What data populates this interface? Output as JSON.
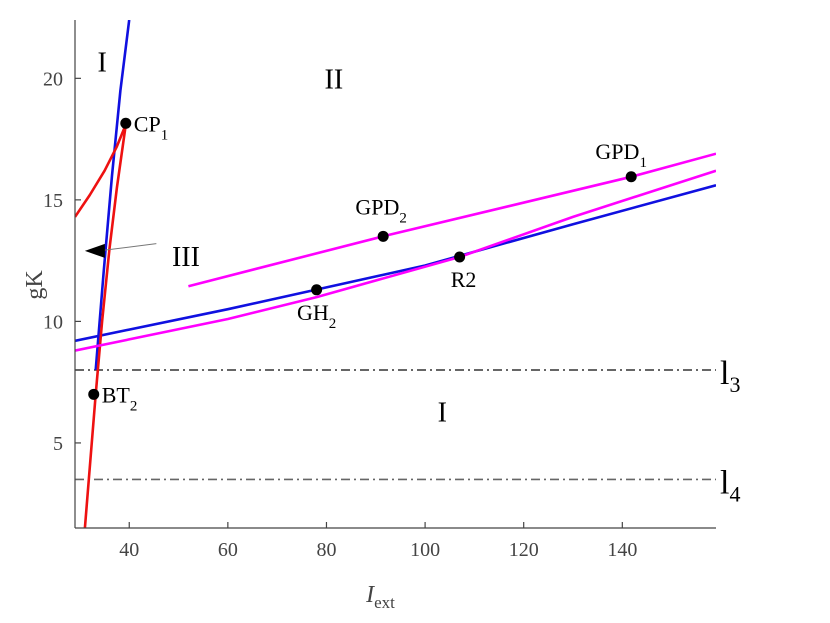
{
  "chart_data": {
    "type": "line",
    "xlabel": {
      "main": "I",
      "sub": "ext"
    },
    "ylabel": "gK",
    "xlim": [
      29,
      159
    ],
    "ylim": [
      1.5,
      22.4
    ],
    "xticks": [
      40,
      60,
      80,
      100,
      120,
      140
    ],
    "yticks": [
      5,
      10,
      15,
      20
    ],
    "grid": false,
    "colors": {
      "blue": "#1010e0",
      "red": "#ee1111",
      "magenta": "#ff00ff",
      "dash_dark": "#333333",
      "dash_light": "#666666",
      "axis": "#444444"
    },
    "series": [
      {
        "color": "blue",
        "points": [
          [
            33.2,
            8
          ],
          [
            34.8,
            12
          ],
          [
            36.5,
            16
          ],
          [
            38.2,
            19.5
          ],
          [
            40.0,
            22.4
          ]
        ]
      },
      {
        "color": "blue",
        "points": [
          [
            29,
            9.2
          ],
          [
            60,
            10.5
          ],
          [
            100,
            12.3
          ],
          [
            130,
            14.0
          ],
          [
            159,
            15.6
          ]
        ]
      },
      {
        "color": "red",
        "points": [
          [
            29,
            14.3
          ],
          [
            32,
            15.2
          ],
          [
            35,
            16.2
          ],
          [
            37.5,
            17.2
          ],
          [
            39.3,
            18.1
          ]
        ]
      },
      {
        "color": "red",
        "points": [
          [
            31.0,
            1.5
          ],
          [
            32.0,
            4.0
          ],
          [
            33.2,
            7.0
          ],
          [
            34.5,
            10.0
          ],
          [
            36.0,
            13.0
          ],
          [
            37.5,
            15.5
          ],
          [
            39.3,
            18.1
          ]
        ]
      },
      {
        "color": "magenta",
        "points": [
          [
            52,
            11.45
          ],
          [
            91.5,
            13.5
          ],
          [
            141.8,
            15.95
          ],
          [
            159,
            16.9
          ]
        ]
      },
      {
        "color": "magenta",
        "points": [
          [
            29,
            8.8
          ],
          [
            60,
            10.1
          ],
          [
            78,
            11.0
          ],
          [
            107,
            12.65
          ],
          [
            130,
            14.3
          ],
          [
            159,
            16.2
          ]
        ]
      }
    ],
    "reference_lines": [
      {
        "y": 8.0,
        "label": "l",
        "sub": "3",
        "style": "dash_dark"
      },
      {
        "y": 3.5,
        "label": "l",
        "sub": "4",
        "style": "dash_light"
      }
    ],
    "points": [
      {
        "name": "CP",
        "sub": "1",
        "x": 39.3,
        "y": 18.15
      },
      {
        "name": "BT",
        "sub": "2",
        "x": 32.8,
        "y": 7.0
      },
      {
        "name": "GPD",
        "sub": "2",
        "x": 91.5,
        "y": 13.5
      },
      {
        "name": "GPD",
        "sub": "1",
        "x": 141.8,
        "y": 15.95
      },
      {
        "name": "GH",
        "sub": "2",
        "x": 78.0,
        "y": 11.3
      },
      {
        "name": "R2",
        "sub": "",
        "x": 107.0,
        "y": 12.65
      }
    ],
    "regions": [
      {
        "label": "I",
        "x": 34.5,
        "y": 20.7
      },
      {
        "label": "II",
        "x": 81.5,
        "y": 20.0
      },
      {
        "label": "III",
        "x": 51.5,
        "y": 12.7
      },
      {
        "label": "I",
        "x": 103.5,
        "y": 6.3
      }
    ],
    "annotation_arrow": {
      "from": [
        45.5,
        13.2
      ],
      "to": [
        31.0,
        12.9
      ]
    }
  }
}
